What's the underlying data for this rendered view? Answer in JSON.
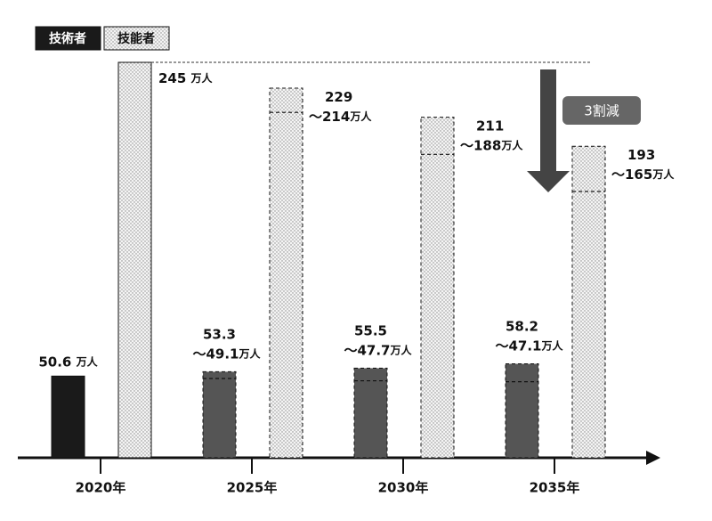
{
  "chart_data": {
    "type": "range_bar",
    "categories": [
      "2020年",
      "2025年",
      "2030年",
      "2035年"
    ],
    "unit": "万人",
    "annotation": "3割減",
    "ylim": [
      0,
      245
    ],
    "series": [
      {
        "name": "技術者",
        "color": "#1a1a1a",
        "range_color": "#555555",
        "values": [
          50.6,
          53.3,
          55.5,
          58.2
        ],
        "low_values": [
          null,
          49.1,
          47.7,
          47.1
        ],
        "low_value_labels": [
          null,
          "～49.1",
          "～47.7",
          "～47.1"
        ]
      },
      {
        "name": "技能者",
        "color": "#f2f2f2",
        "values": [
          245,
          229,
          211,
          193
        ],
        "low_values": [
          null,
          214,
          188,
          165
        ],
        "low_value_labels": [
          null,
          "～214",
          "～188",
          "～165"
        ]
      }
    ]
  }
}
